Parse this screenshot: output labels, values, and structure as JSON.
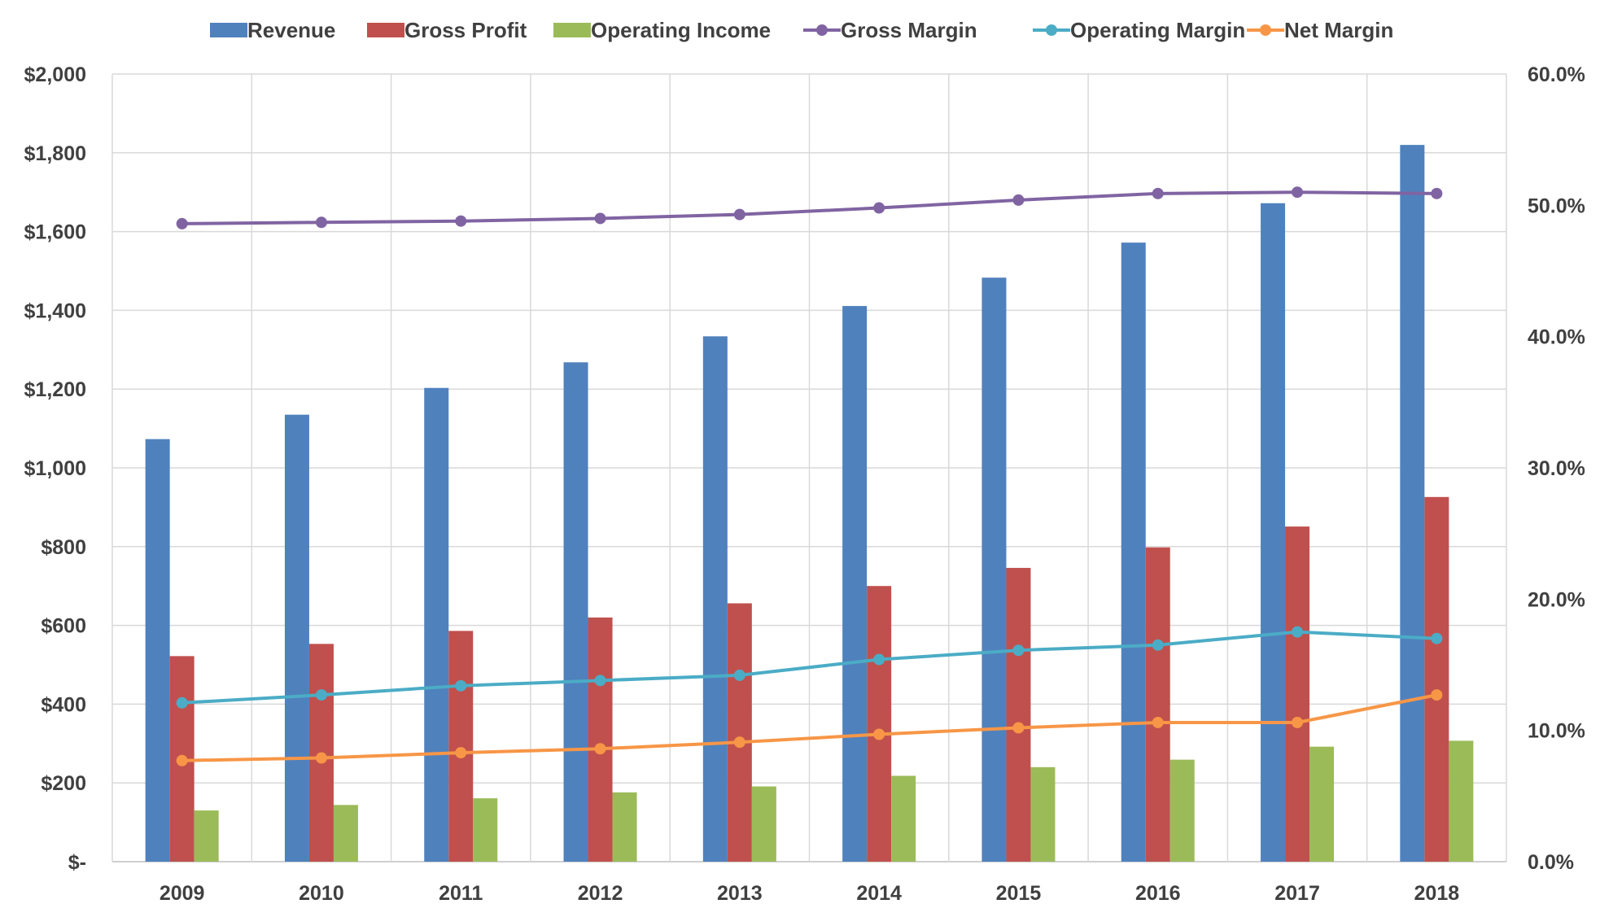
{
  "chart_data": {
    "type": "bar",
    "categories": [
      "2009",
      "2010",
      "2011",
      "2012",
      "2013",
      "2014",
      "2015",
      "2016",
      "2017",
      "2018"
    ],
    "y_left": {
      "ylim": [
        0,
        2000
      ],
      "ticks": [
        0,
        200,
        400,
        600,
        800,
        1000,
        1200,
        1400,
        1600,
        1800,
        2000
      ],
      "tick_labels": [
        "$-",
        "$200",
        "$400",
        "$600",
        "$800",
        "$1,000",
        "$1,200",
        "$1,400",
        "$1,600",
        "$1,800",
        "$2,000"
      ]
    },
    "y_right": {
      "ylim": [
        0,
        0.6
      ],
      "ticks": [
        0,
        0.1,
        0.2,
        0.3,
        0.4,
        0.5,
        0.6
      ],
      "tick_labels": [
        "0.0%",
        "10.0%",
        "20.0%",
        "30.0%",
        "40.0%",
        "50.0%",
        "60.0%"
      ]
    },
    "grid": true,
    "legend_position": "top",
    "bar_series": [
      {
        "name": "Revenue",
        "color": "#4f81bd",
        "axis": "left",
        "values": [
          1073,
          1135,
          1203,
          1268,
          1334,
          1411,
          1483,
          1572,
          1672,
          1820
        ]
      },
      {
        "name": "Gross Profit",
        "color": "#c0504d",
        "axis": "left",
        "values": [
          522,
          553,
          586,
          620,
          656,
          700,
          746,
          798,
          851,
          926
        ]
      },
      {
        "name": "Operating Income",
        "color": "#9bbb59",
        "axis": "left",
        "values": [
          130,
          144,
          161,
          176,
          191,
          218,
          240,
          259,
          292,
          307
        ]
      }
    ],
    "line_series": [
      {
        "name": "Gross Margin",
        "color": "#8064a2",
        "axis": "right",
        "values": [
          0.486,
          0.487,
          0.488,
          0.49,
          0.493,
          0.498,
          0.504,
          0.509,
          0.51,
          0.509
        ]
      },
      {
        "name": "Operating Margin",
        "color": "#4bacc6",
        "axis": "right",
        "values": [
          0.121,
          0.127,
          0.134,
          0.138,
          0.142,
          0.154,
          0.161,
          0.165,
          0.175,
          0.17
        ]
      },
      {
        "name": "Net Margin",
        "color": "#f79646",
        "axis": "right",
        "values": [
          0.077,
          0.079,
          0.083,
          0.086,
          0.091,
          0.097,
          0.102,
          0.106,
          0.106,
          0.127
        ]
      }
    ]
  }
}
